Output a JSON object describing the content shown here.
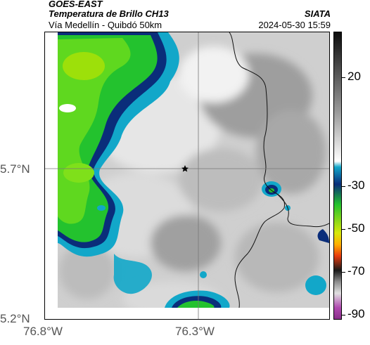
{
  "header": {
    "satellite": "GOES-EAST",
    "product": "Temperatura de Brillo CH13",
    "source": "SIATA",
    "route": "Vía Medellín - Quibdó 50km",
    "datetime": "2024-05-30 15:59"
  },
  "map": {
    "lat_ticks": [
      "5.7°N",
      "5.2°N"
    ],
    "lon_ticks": [
      "76.8°W",
      "76.3°W"
    ],
    "marker": "star-marker"
  },
  "colorbar": {
    "ticks": [
      "20",
      "-30",
      "-50",
      "-70",
      "-90"
    ],
    "unit_note": "",
    "palette": [
      "#1a1a1a",
      "#9a9a9a",
      "#ffffff",
      "#12a7c9",
      "#0a2d7a",
      "#23c22e",
      "#d8e80a",
      "#e83a0e",
      "#191919",
      "#bdbdbd",
      "#b04ab0"
    ]
  }
}
